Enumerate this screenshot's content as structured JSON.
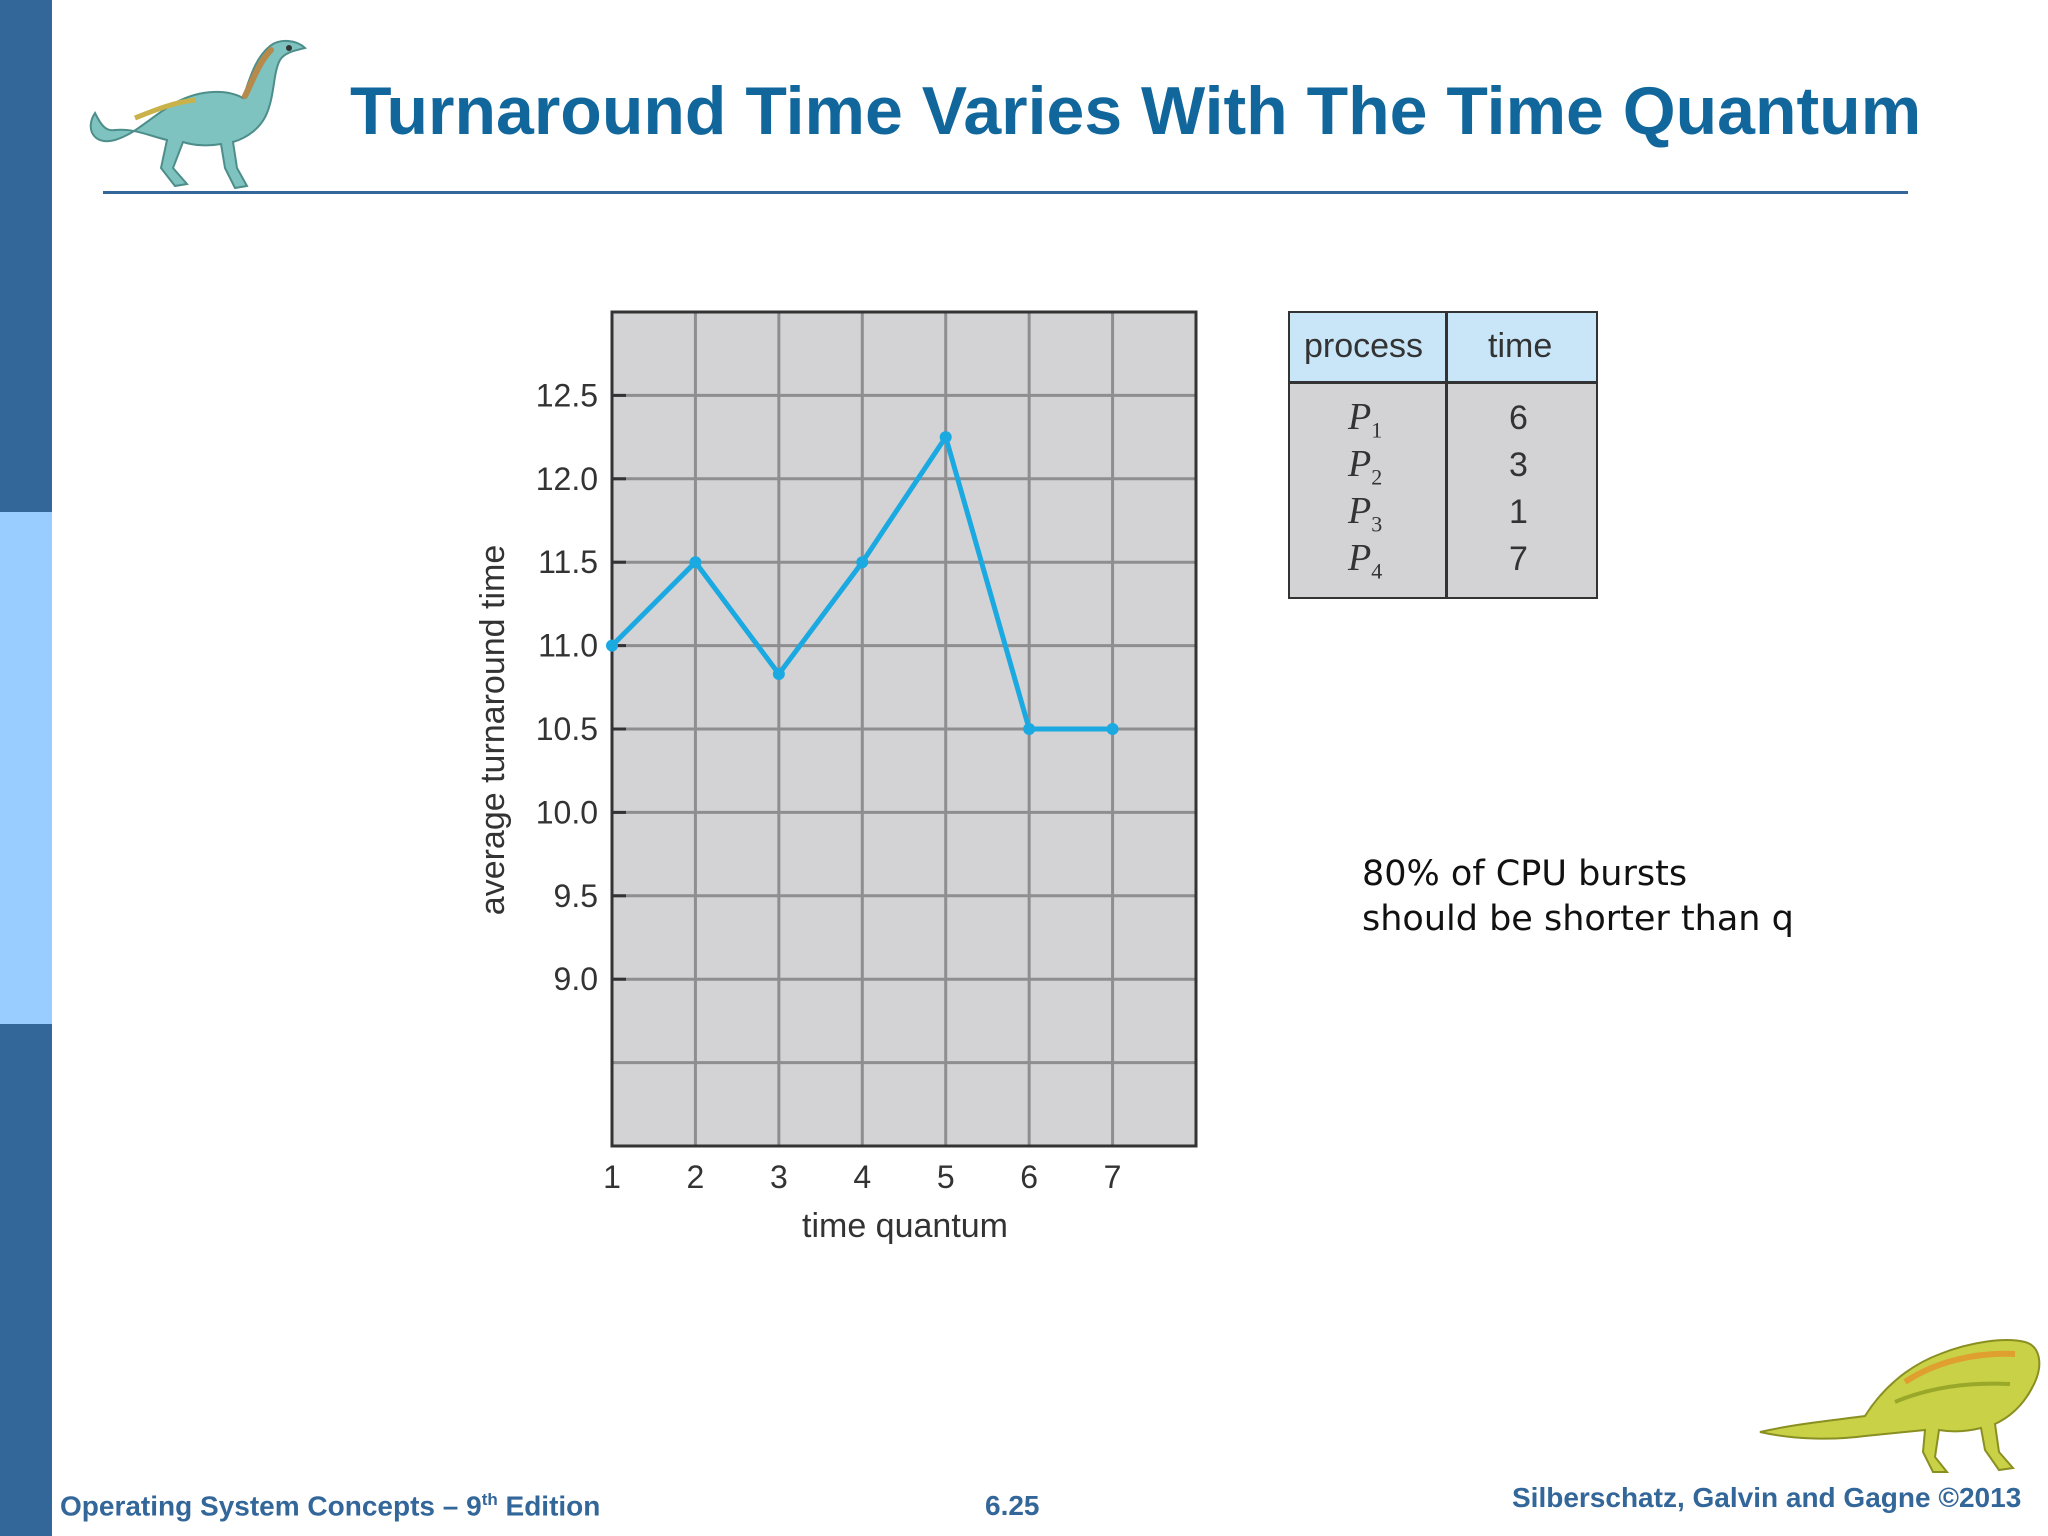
{
  "slide": {
    "title": "Turnaround Time Varies With The Time Quantum",
    "note_lines": [
      "80% of CPU bursts",
      "should be shorter than q"
    ],
    "footer": {
      "book_prefix": "Operating System Concepts – 9",
      "book_sup": "th",
      "book_suffix": " Edition",
      "page": "6.25",
      "authors": "Silberschatz, Galvin and Gagne ©2013"
    }
  },
  "process_table": {
    "headers": [
      "process",
      "time"
    ],
    "rows": [
      {
        "name": "P",
        "sub": "1",
        "time": "6"
      },
      {
        "name": "P",
        "sub": "2",
        "time": "3"
      },
      {
        "name": "P",
        "sub": "3",
        "time": "1"
      },
      {
        "name": "P",
        "sub": "4",
        "time": "7"
      }
    ]
  },
  "chart_data": {
    "type": "line",
    "title": "",
    "xlabel": "time quantum",
    "ylabel": "average turnaround time",
    "x": [
      1,
      2,
      3,
      4,
      5,
      6,
      7
    ],
    "series": [
      {
        "values": [
          11.0,
          11.5,
          10.83,
          11.5,
          12.25,
          10.5,
          10.5
        ]
      }
    ],
    "xticks": [
      "1",
      "2",
      "3",
      "4",
      "5",
      "6",
      "7"
    ],
    "yticks": [
      "12.5",
      "12.0",
      "11.5",
      "11.0",
      "10.5",
      "10.0",
      "9.5",
      "9.0"
    ],
    "ylim": [
      8.0,
      13.0
    ],
    "xlim": [
      1,
      8
    ],
    "grid": true,
    "line_color": "#1ba9e1",
    "plot_background": "#d3d3d5"
  }
}
